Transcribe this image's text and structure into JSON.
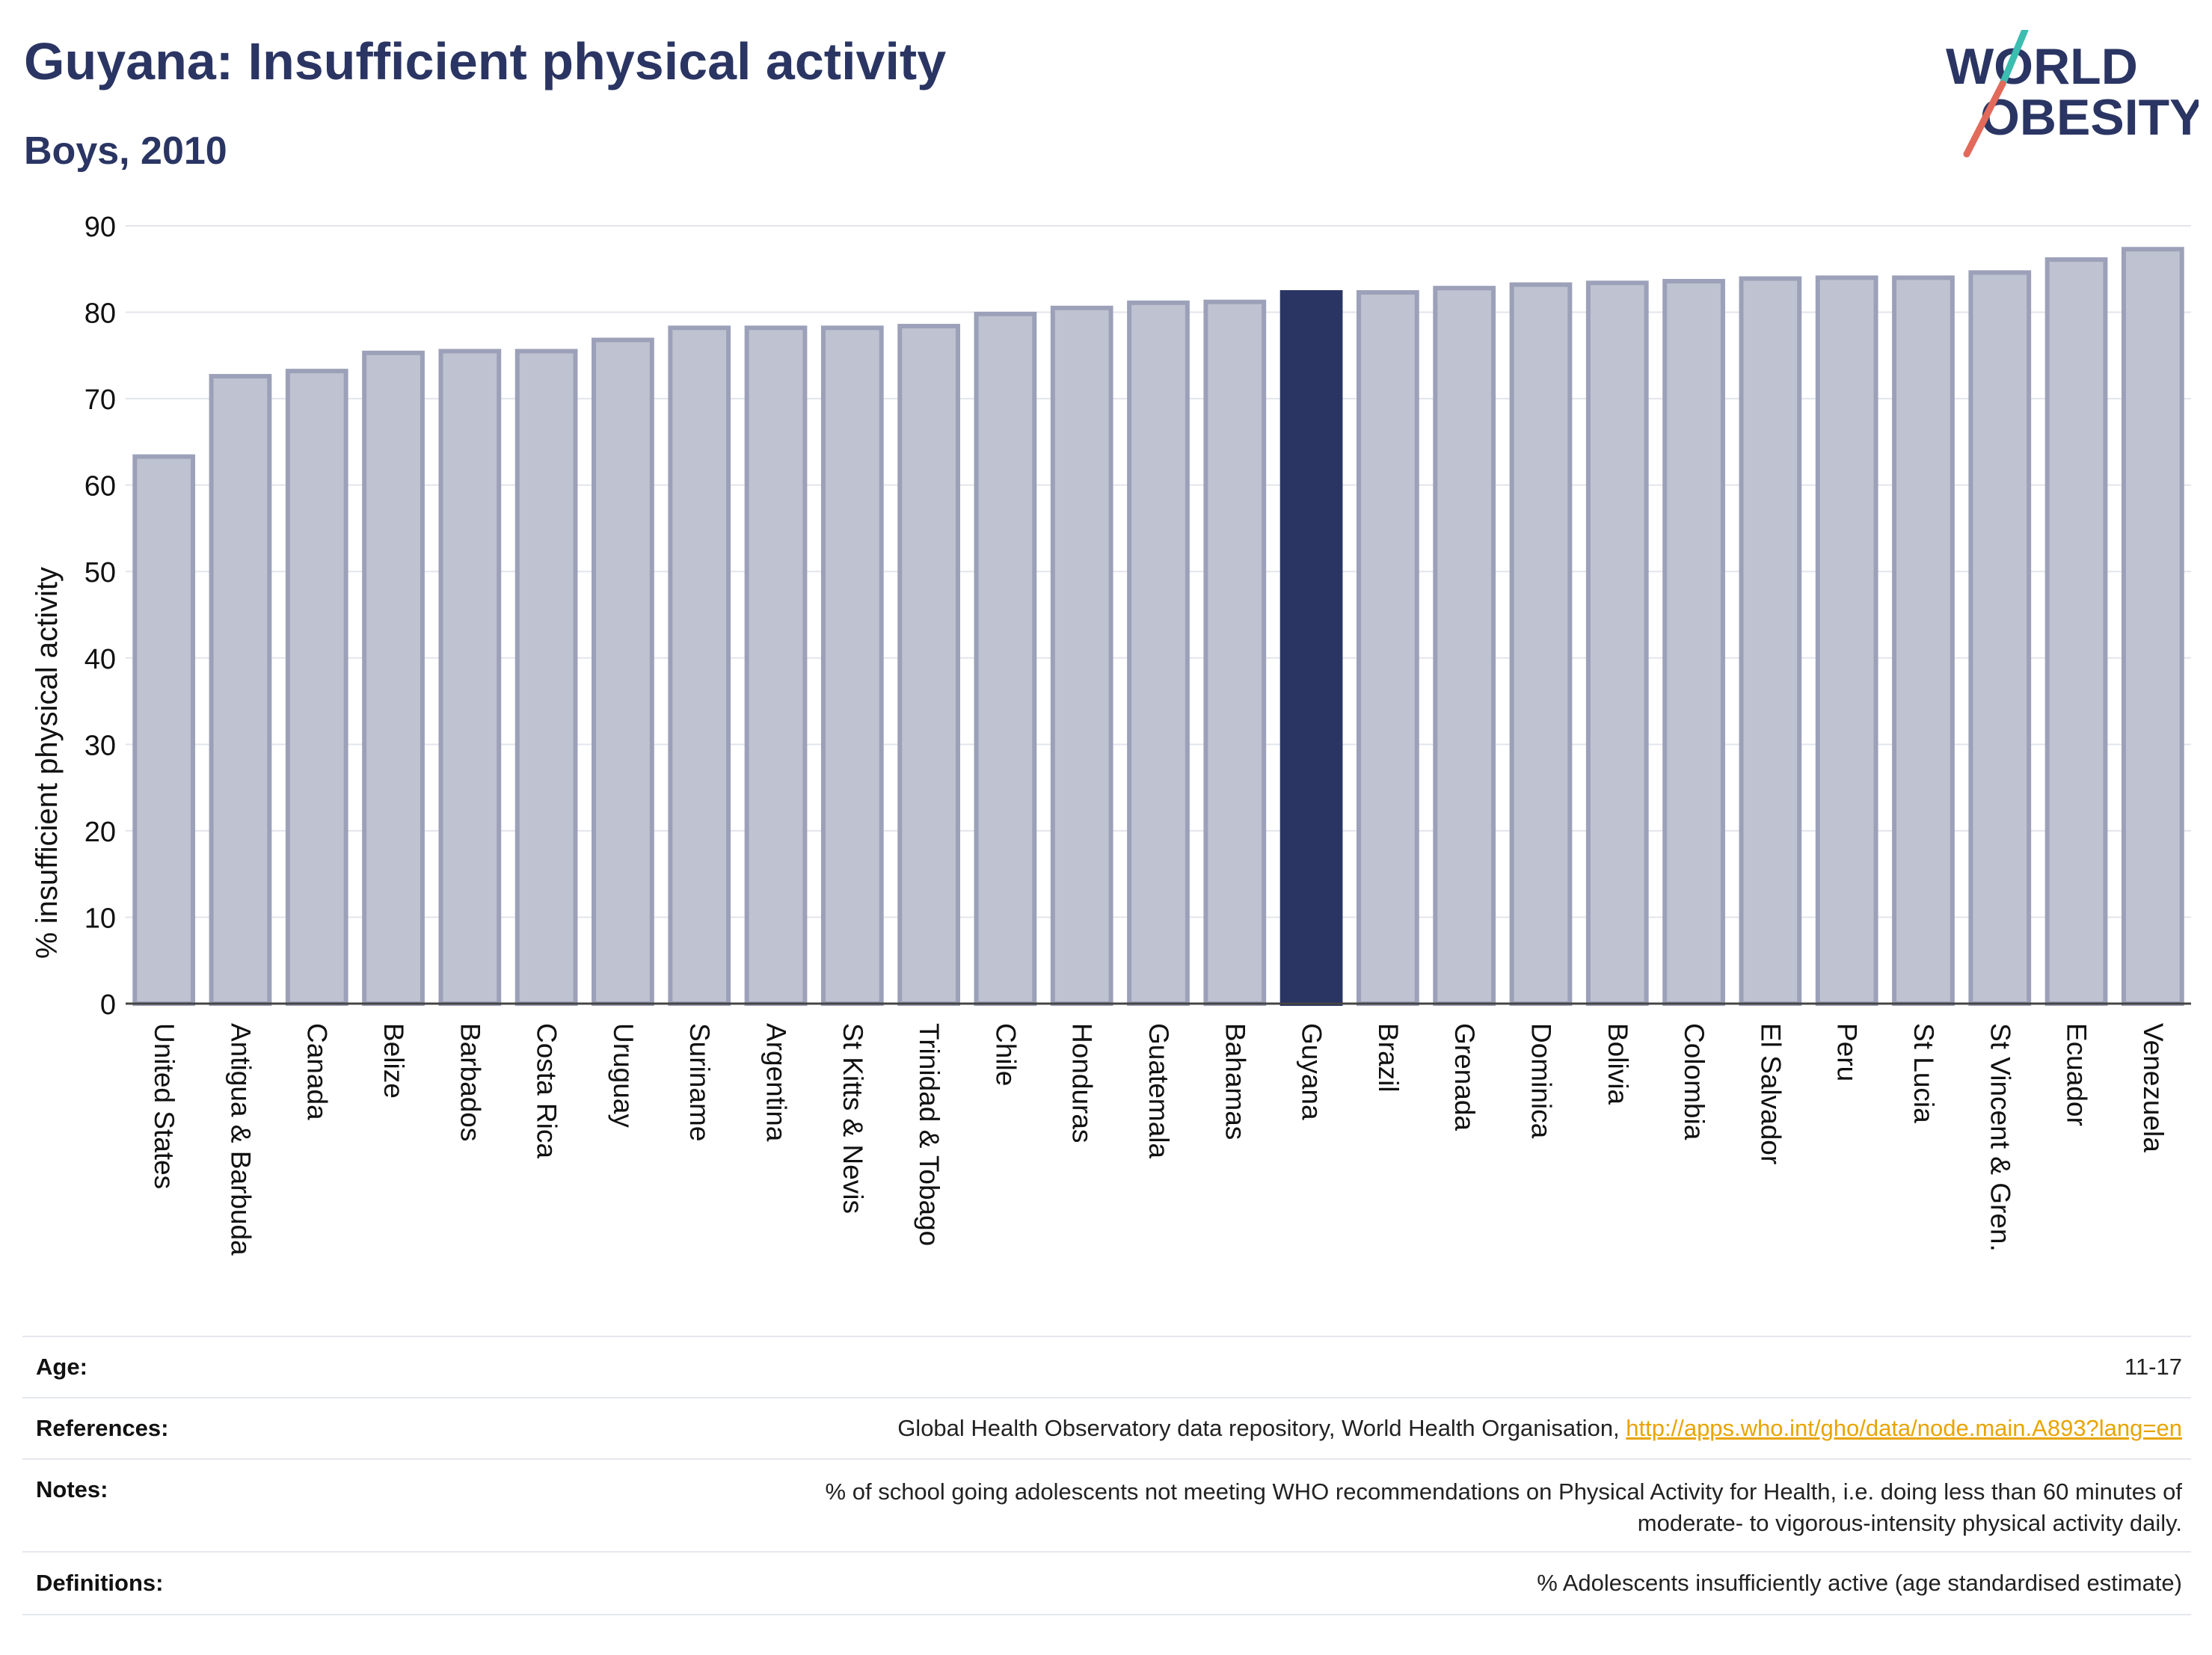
{
  "header": {
    "title": "Guyana: Insufficient physical activity",
    "subtitle": "Boys, 2010"
  },
  "logo": {
    "line1": "WORLD",
    "line2": "OBESITY"
  },
  "colors": {
    "highlight": "#2a3563",
    "bar": "#bfc2d0",
    "bar_border": "#9ca1b9",
    "link": "#e8a400",
    "logo_teal": "#3bbdb0",
    "logo_red": "#e26a5a"
  },
  "chart_data": {
    "type": "bar",
    "ylabel": "% insufficient physical activity",
    "ylim": [
      0,
      90
    ],
    "yticks": [
      0,
      10,
      20,
      30,
      40,
      50,
      60,
      70,
      80,
      90
    ],
    "grid": true,
    "highlight": "Guyana",
    "categories": [
      "United States",
      "Antigua & Barbuda",
      "Canada",
      "Belize",
      "Barbados",
      "Costa Rica",
      "Uruguay",
      "Suriname",
      "Argentina",
      "St Kitts & Nevis",
      "Trinidad & Tobago",
      "Chile",
      "Honduras",
      "Guatemala",
      "Bahamas",
      "Guyana",
      "Brazil",
      "Grenada",
      "Dominica",
      "Bolivia",
      "Colombia",
      "El Salvador",
      "Peru",
      "St Lucia",
      "St Vincent & Gren.",
      "Ecuador",
      "Venezuela"
    ],
    "values": [
      63.3,
      72.6,
      73.2,
      75.3,
      75.5,
      75.5,
      76.8,
      78.2,
      78.2,
      78.2,
      78.4,
      79.8,
      80.5,
      81.1,
      81.2,
      82.3,
      82.3,
      82.8,
      83.2,
      83.4,
      83.6,
      83.9,
      84.0,
      84.0,
      84.6,
      86.1,
      87.3
    ]
  },
  "info": {
    "age_label": "Age:",
    "age_value": "11-17",
    "references_label": "References:",
    "references_text": "Global Health Observatory data repository, World Health Organisation, ",
    "references_link": "http://apps.who.int/gho/data/node.main.A893?lang=en",
    "notes_label": "Notes:",
    "notes_line1": "% of school going adolescents not meeting WHO recommendations on Physical Activity for Health, i.e. doing less than 60 minutes of",
    "notes_line2": "moderate- to vigorous-intensity physical activity daily.",
    "definitions_label": "Definitions:",
    "definitions_value": "% Adolescents insufficiently active (age standardised estimate)"
  }
}
